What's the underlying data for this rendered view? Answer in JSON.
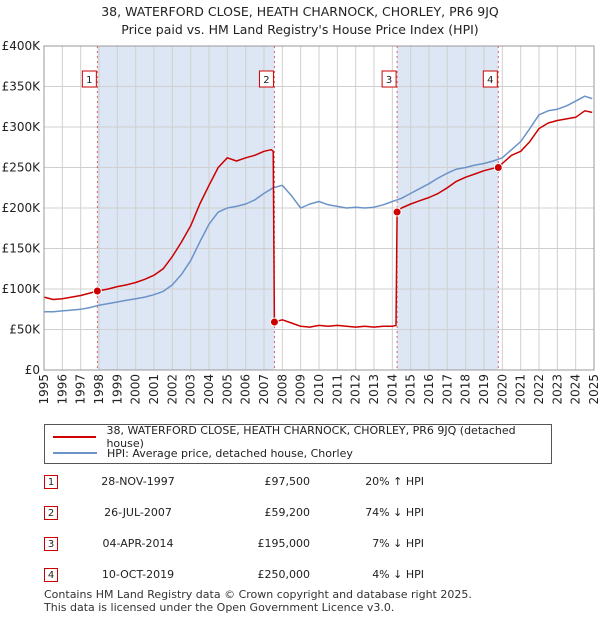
{
  "page_title": "38, WATERFORD CLOSE, HEATH CHARNOCK, CHORLEY, PR6 9JQ",
  "page_subtitle": "Price paid vs. HM Land Registry's House Price Index (HPI)",
  "colors": {
    "property": "#cc0000",
    "hpi": "#6b93c8",
    "shade": "#dde6f4",
    "marker_border": "#cc0000"
  },
  "chart_data": {
    "type": "line",
    "title": "38, WATERFORD CLOSE, HEATH CHARNOCK, CHORLEY, PR6 9JQ",
    "subtitle": "Price paid vs. HM Land Registry's House Price Index (HPI)",
    "xlabel": "",
    "ylabel": "",
    "xlim": [
      1995,
      2025
    ],
    "ylim": [
      0,
      400000
    ],
    "grid": true,
    "y_ticks": [
      {
        "value": 0,
        "label": "£0"
      },
      {
        "value": 50000,
        "label": "£50K"
      },
      {
        "value": 100000,
        "label": "£100K"
      },
      {
        "value": 150000,
        "label": "£150K"
      },
      {
        "value": 200000,
        "label": "£200K"
      },
      {
        "value": 250000,
        "label": "£250K"
      },
      {
        "value": 300000,
        "label": "£300K"
      },
      {
        "value": 350000,
        "label": "£350K"
      },
      {
        "value": 400000,
        "label": "£400K"
      }
    ],
    "x_ticks": [
      "1995",
      "1996",
      "1997",
      "1998",
      "1999",
      "2000",
      "2001",
      "2002",
      "2003",
      "2004",
      "2005",
      "2006",
      "2007",
      "2008",
      "2009",
      "2010",
      "2011",
      "2012",
      "2013",
      "2014",
      "2015",
      "2016",
      "2017",
      "2018",
      "2019",
      "2020",
      "2021",
      "2022",
      "2023",
      "2024",
      "2025"
    ],
    "shaded_ranges": [
      [
        1997.91,
        2007.57
      ],
      [
        2014.26,
        2019.78
      ]
    ],
    "sale_markers": [
      {
        "label": "1",
        "x": 1997.91,
        "y": 97500
      },
      {
        "label": "2",
        "x": 2007.57,
        "y": 59200
      },
      {
        "label": "3",
        "x": 2014.26,
        "y": 195000
      },
      {
        "label": "4",
        "x": 2019.78,
        "y": 250000
      }
    ],
    "series": [
      {
        "name": "38, WATERFORD CLOSE, HEATH CHARNOCK, CHORLEY, PR6 9JQ (detached house)",
        "color": "#cc0000",
        "x": [
          1995,
          1995.5,
          1996,
          1996.5,
          1997,
          1997.5,
          1997.91,
          1998.5,
          1999,
          1999.5,
          2000,
          2000.5,
          2001,
          2001.5,
          2002,
          2002.5,
          2003,
          2003.5,
          2004,
          2004.5,
          2005,
          2005.5,
          2006,
          2006.5,
          2007,
          2007.4,
          2007.5,
          2007.57,
          2008,
          2008.5,
          2009,
          2009.5,
          2010,
          2010.5,
          2011,
          2011.5,
          2012,
          2012.5,
          2013,
          2013.5,
          2014,
          2014.2,
          2014.26,
          2014.5,
          2015,
          2015.5,
          2016,
          2016.5,
          2017,
          2017.5,
          2018,
          2018.5,
          2019,
          2019.5,
          2019.78,
          2020,
          2020.5,
          2021,
          2021.5,
          2022,
          2022.5,
          2023,
          2023.5,
          2024,
          2024.5,
          2024.9
        ],
        "values": [
          90000,
          87000,
          88000,
          90000,
          92000,
          95000,
          97500,
          100000,
          103000,
          105000,
          108000,
          112000,
          117000,
          125000,
          140000,
          158000,
          178000,
          205000,
          228000,
          250000,
          262000,
          258000,
          262000,
          265000,
          270000,
          272000,
          270000,
          59200,
          62000,
          58000,
          54000,
          53000,
          55000,
          54000,
          55000,
          54000,
          53000,
          54000,
          53000,
          54000,
          54000,
          55000,
          195000,
          200000,
          205000,
          209000,
          213000,
          218000,
          225000,
          233000,
          238000,
          242000,
          246000,
          249000,
          250000,
          255000,
          265000,
          270000,
          282000,
          298000,
          305000,
          308000,
          310000,
          312000,
          320000,
          318000
        ]
      },
      {
        "name": "HPI: Average price, detached house, Chorley",
        "color": "#6b93c8",
        "x": [
          1995,
          1995.5,
          1996,
          1996.5,
          1997,
          1997.5,
          1998,
          1998.5,
          1999,
          1999.5,
          2000,
          2000.5,
          2001,
          2001.5,
          2002,
          2002.5,
          2003,
          2003.5,
          2004,
          2004.5,
          2005,
          2005.5,
          2006,
          2006.5,
          2007,
          2007.5,
          2008,
          2008.5,
          2009,
          2009.5,
          2010,
          2010.5,
          2011,
          2011.5,
          2012,
          2012.5,
          2013,
          2013.5,
          2014,
          2014.5,
          2015,
          2015.5,
          2016,
          2016.5,
          2017,
          2017.5,
          2018,
          2018.5,
          2019,
          2019.5,
          2020,
          2020.5,
          2021,
          2021.5,
          2022,
          2022.5,
          2023,
          2023.5,
          2024,
          2024.5,
          2024.9
        ],
        "values": [
          72000,
          72000,
          73000,
          74000,
          75000,
          77000,
          80000,
          82000,
          84000,
          86000,
          88000,
          90000,
          93000,
          97000,
          105000,
          118000,
          135000,
          158000,
          180000,
          195000,
          200000,
          202000,
          205000,
          210000,
          218000,
          225000,
          228000,
          215000,
          200000,
          205000,
          208000,
          204000,
          202000,
          200000,
          201000,
          200000,
          201000,
          204000,
          208000,
          212000,
          218000,
          224000,
          230000,
          237000,
          243000,
          248000,
          250000,
          253000,
          255000,
          258000,
          262000,
          272000,
          282000,
          298000,
          315000,
          320000,
          322000,
          326000,
          332000,
          338000,
          335000
        ]
      }
    ]
  },
  "legend": {
    "property_label": "38, WATERFORD CLOSE, HEATH CHARNOCK, CHORLEY, PR6 9JQ (detached house)",
    "hpi_label": "HPI: Average price, detached house, Chorley"
  },
  "sales": [
    {
      "num": "1",
      "date": "28-NOV-1997",
      "price": "£97,500",
      "hpi": "20% ↑ HPI"
    },
    {
      "num": "2",
      "date": "26-JUL-2007",
      "price": "£59,200",
      "hpi": "74% ↓ HPI"
    },
    {
      "num": "3",
      "date": "04-APR-2014",
      "price": "£195,000",
      "hpi": "7% ↓ HPI"
    },
    {
      "num": "4",
      "date": "10-OCT-2019",
      "price": "£250,000",
      "hpi": "4% ↓ HPI"
    }
  ],
  "footer": {
    "line1": "Contains HM Land Registry data © Crown copyright and database right 2025.",
    "line2": "This data is licensed under the Open Government Licence v3.0."
  }
}
